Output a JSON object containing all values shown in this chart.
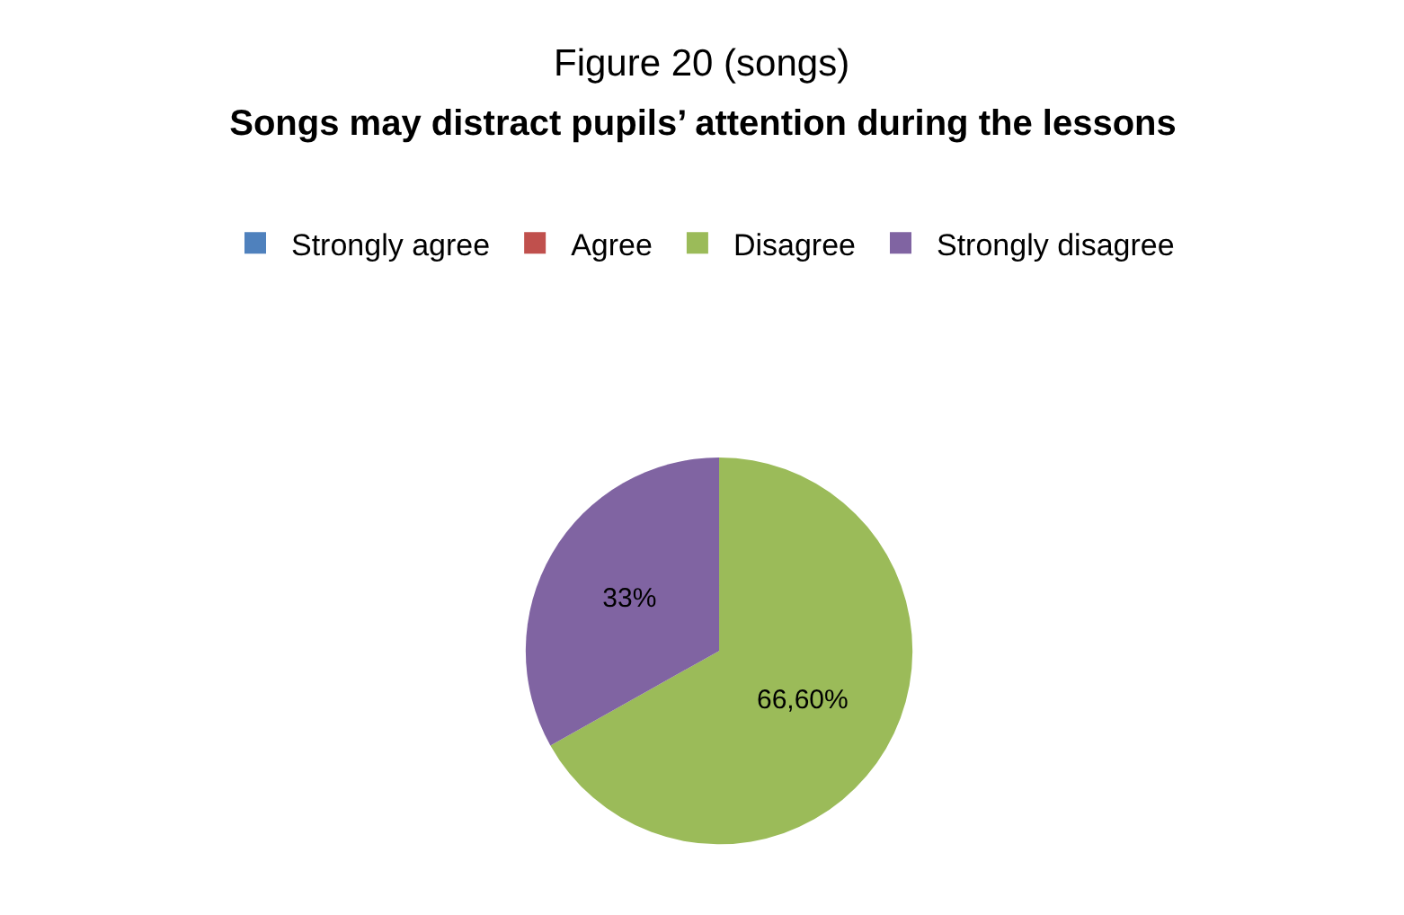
{
  "chart_data": {
    "type": "pie",
    "title": "Figure 20 (songs)",
    "subtitle": "Songs may distract pupils’ attention during the lessons",
    "categories": [
      "Strongly agree",
      "Agree",
      "Disagree",
      "Strongly disagree"
    ],
    "values": [
      0,
      0,
      66.6,
      33
    ],
    "value_labels": [
      null,
      null,
      "66,60%",
      "33%"
    ],
    "colors": [
      "#4f81bd",
      "#c0504d",
      "#9bbb59",
      "#8064a2"
    ],
    "legend": "top"
  }
}
